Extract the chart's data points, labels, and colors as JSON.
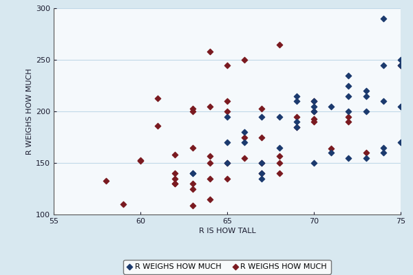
{
  "title": "",
  "xlabel": "R IS HOW TALL",
  "ylabel": "R WEIGHS HOW MUCH",
  "xlim": [
    55,
    75
  ],
  "ylim": [
    100,
    300
  ],
  "xticks": [
    55,
    60,
    65,
    70,
    75
  ],
  "yticks": [
    100,
    150,
    200,
    250,
    300
  ],
  "background_color": "#d8e8f0",
  "plot_bg_color": "#f5f9fc",
  "grid_color": "#c0d8e8",
  "legend_label_men": "R WEIGHS HOW MUCH",
  "legend_label_women": "R WEIGHS HOW MUCH",
  "men_color": "#1b3a6e",
  "women_color": "#7a1a20",
  "marker": "D",
  "marker_size": 18,
  "men_x": [
    63,
    63,
    65,
    65,
    65,
    66,
    66,
    67,
    67,
    67,
    67,
    68,
    68,
    69,
    69,
    69,
    69,
    70,
    70,
    70,
    70,
    71,
    71,
    72,
    72,
    72,
    72,
    72,
    73,
    73,
    73,
    73,
    74,
    74,
    74,
    74,
    74,
    75,
    75,
    75,
    75
  ],
  "men_y": [
    140,
    140,
    150,
    195,
    170,
    180,
    170,
    150,
    195,
    140,
    135,
    195,
    165,
    190,
    215,
    210,
    185,
    150,
    205,
    210,
    200,
    205,
    160,
    200,
    215,
    225,
    235,
    155,
    200,
    215,
    220,
    155,
    160,
    165,
    210,
    245,
    290,
    170,
    205,
    250,
    245
  ],
  "women_x": [
    58,
    59,
    60,
    60,
    61,
    61,
    62,
    62,
    62,
    62,
    62,
    63,
    63,
    63,
    63,
    63,
    63,
    64,
    64,
    64,
    64,
    64,
    64,
    65,
    65,
    65,
    65,
    65,
    66,
    66,
    66,
    67,
    67,
    67,
    67,
    68,
    68,
    68,
    68,
    69,
    69,
    70,
    70,
    70,
    70,
    71,
    72,
    72,
    73,
    75
  ],
  "women_y": [
    133,
    110,
    152,
    153,
    213,
    186,
    130,
    130,
    135,
    140,
    158,
    109,
    125,
    130,
    165,
    200,
    203,
    115,
    135,
    150,
    157,
    205,
    258,
    135,
    150,
    200,
    210,
    245,
    155,
    175,
    250,
    140,
    150,
    175,
    203,
    140,
    150,
    157,
    265,
    185,
    195,
    190,
    193,
    200,
    210,
    164,
    190,
    195,
    160,
    245
  ]
}
